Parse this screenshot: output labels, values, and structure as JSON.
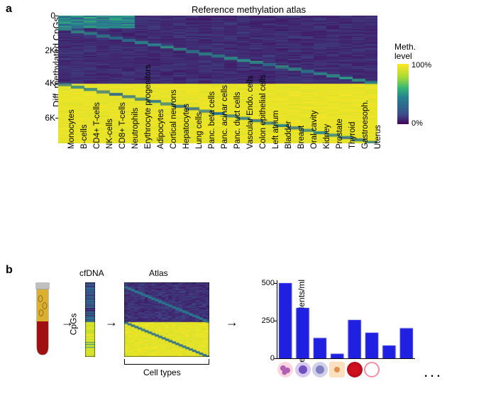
{
  "panelA": {
    "label": "a",
    "title": "Reference methylation atlas",
    "y_axis_title": "Diff. methylated CpGs",
    "y_ticks": [
      {
        "value": "0",
        "pos": 0
      },
      {
        "value": "2K",
        "pos": 0.27
      },
      {
        "value": "4K",
        "pos": 0.53
      },
      {
        "value": "6K",
        "pos": 0.8
      }
    ],
    "x_labels": [
      "Monocytes",
      "B-cells",
      "CD4+ T-cells",
      "NK-cells",
      "CD8+ T-cells",
      "Neutrophils",
      "Erythrocyte progenitors",
      "Adipocytes",
      "Cortical neurons",
      "Hepatocytes",
      "Lung cells",
      "Panc. beta cells",
      "Panc. acinar cells",
      "Panc. duct cells",
      "Vascular Endo. cells",
      "Colon epithelial cells",
      "Left atrium",
      "Bladder",
      "Breast",
      "Oral cavity",
      "Kidney",
      "Prostate",
      "Thyroid",
      "Gastroesoph.",
      "Uterus"
    ],
    "heatmap": {
      "split_pos": 0.53,
      "color_low": "#1a2d7a",
      "color_mid": "#2e7a9a",
      "color_high": "#fde725",
      "color_highlight": "#3fb0c0"
    }
  },
  "colorbar": {
    "title_line1": "Meth.",
    "title_line2": "level",
    "max_label": "100%",
    "min_label": "0%",
    "colors": [
      "#fde725",
      "#a5db36",
      "#4fc46a",
      "#21918c",
      "#31688e",
      "#3e4989",
      "#440154"
    ]
  },
  "panelB": {
    "label": "b",
    "cfDNA_label": "cfDNA",
    "atlas_label": "Atlas",
    "cpg_label": "CpGs",
    "celltypes_label": "Cell types",
    "bar_y_title": "Genome equivalents/ml",
    "bar_y_ticks": [
      "0",
      "250",
      "500"
    ],
    "bars": [
      {
        "value": 500,
        "color": "#2020e0"
      },
      {
        "value": 335,
        "color": "#2020e0"
      },
      {
        "value": 135,
        "color": "#2020e0"
      },
      {
        "value": 30,
        "color": "#2020e0"
      },
      {
        "value": 255,
        "color": "#2020e0"
      },
      {
        "value": 170,
        "color": "#2020e0"
      },
      {
        "value": 85,
        "color": "#2020e0"
      },
      {
        "value": 200,
        "color": "#2020e0"
      }
    ],
    "bar_max": 500,
    "cell_icons": [
      {
        "bg": "#fcd5e0",
        "inner": "#b060b0",
        "type": "lobed"
      },
      {
        "bg": "#d8c8f0",
        "inner": "#7050c0",
        "type": "round"
      },
      {
        "bg": "#d0d0e8",
        "inner": "#8080c0",
        "type": "mono"
      },
      {
        "bg": "#fce0c0",
        "inner": "#e09050",
        "type": "square"
      },
      {
        "bg": "#d01020",
        "inner": "#d01020",
        "type": "rbc"
      },
      {
        "bg": "#ffffff",
        "inner": "#f090a0",
        "type": "ring"
      }
    ],
    "dots": ". . .",
    "tube": {
      "cap_color": "#c0c0c0",
      "serum_color": "#d9b030",
      "blood_color": "#a01010",
      "dna_color": "#806020"
    }
  }
}
